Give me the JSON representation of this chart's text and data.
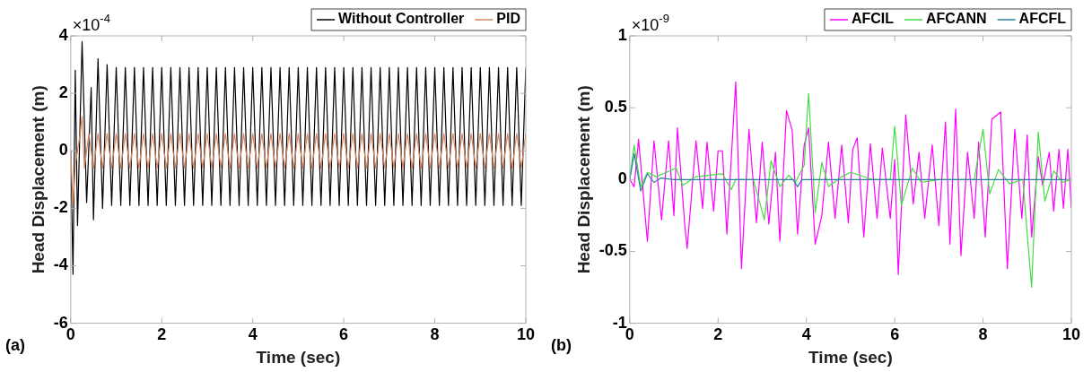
{
  "chart_data": [
    {
      "type": "line",
      "xlabel": "Time (sec)",
      "ylabel": "Head Displacement (m)",
      "annotations": [
        "×10$^{-4}$",
        "(a)"
      ],
      "xlim": [
        0,
        10
      ],
      "xticks": [
        0,
        2,
        4,
        6,
        8,
        10
      ],
      "ylim": [
        -6,
        4
      ],
      "yticks": [
        -6,
        -4,
        -2,
        0,
        2,
        4
      ],
      "grid": false,
      "legend": "top right",
      "marker": "none",
      "line_style": "solid",
      "series": [
        {
          "name": "Without Controller",
          "color": "#000000",
          "x": [
            0,
            0.05,
            0.1,
            0.15,
            0.25,
            0.35,
            0.45,
            0.5,
            0.6,
            0.7,
            0.8,
            0.9,
            1,
            1.1,
            1.2,
            1.3,
            1.4,
            1.5,
            1.6,
            1.7,
            1.8,
            1.9,
            2,
            2.1,
            2.2,
            2.3,
            2.4,
            2.5,
            2.6,
            2.7,
            2.8,
            2.9,
            3,
            3.1,
            3.2,
            3.3,
            3.4,
            3.5,
            3.6,
            3.7,
            3.8,
            3.9,
            4,
            4.1,
            4.2,
            4.3,
            4.4,
            4.5,
            4.6,
            4.7,
            4.8,
            4.9,
            5,
            5.1,
            5.2,
            5.3,
            5.4,
            5.5,
            5.6,
            5.7,
            5.8,
            5.9,
            6,
            6.1,
            6.2,
            6.3,
            6.4,
            6.5,
            6.6,
            6.7,
            6.8,
            6.9,
            7,
            7.1,
            7.2,
            7.3,
            7.4,
            7.5,
            7.6,
            7.7,
            7.8,
            7.9,
            8,
            8.1,
            8.2,
            8.3,
            8.4,
            8.5,
            8.6,
            8.7,
            8.8,
            8.9,
            9,
            9.1,
            9.2,
            9.3,
            9.4,
            9.5,
            9.6,
            9.7,
            9.8,
            9.9,
            10
          ],
          "values": [
            0,
            -4.3,
            2.8,
            -2.6,
            3.8,
            -1.8,
            2.2,
            -2.4,
            3.2,
            -2,
            3,
            -1.9,
            2.9,
            -1.9,
            2.9,
            -1.9,
            2.9,
            -1.9,
            2.9,
            -1.9,
            2.9,
            -1.9,
            2.9,
            -1.9,
            2.9,
            -1.9,
            2.9,
            -1.9,
            2.9,
            -1.9,
            2.9,
            -1.9,
            2.9,
            -1.9,
            2.9,
            -1.9,
            2.9,
            -1.9,
            2.9,
            -1.9,
            2.9,
            -1.9,
            2.9,
            -1.9,
            2.9,
            -1.9,
            2.9,
            -1.9,
            2.9,
            -1.9,
            2.9,
            -1.9,
            2.9,
            -1.9,
            2.9,
            -1.9,
            2.9,
            -1.9,
            2.9,
            -1.9,
            2.9,
            -1.9,
            2.9,
            -1.9,
            2.9,
            -1.9,
            2.9,
            -1.9,
            2.9,
            -1.9,
            2.9,
            -1.9,
            2.9,
            -1.9,
            2.9,
            -1.9,
            2.9,
            -1.9,
            2.9,
            -1.9,
            2.9,
            -1.9,
            2.9,
            -1.9,
            2.9,
            -1.9,
            2.9,
            -1.9,
            2.9,
            -1.9,
            2.9,
            -1.9,
            2.9,
            -1.9,
            2.9,
            -1.9,
            2.9,
            -1.9,
            2.9,
            -1.9,
            2.9,
            -1.9,
            2.9
          ]
        },
        {
          "name": "PID",
          "color": "#d9865e",
          "x": [
            0,
            0.05,
            0.1,
            0.2,
            0.25,
            0.3,
            0.4,
            0.5,
            0.6,
            0.7,
            0.8,
            0.9,
            1,
            1.1,
            1.2,
            1.3,
            1.4,
            1.5,
            1.6,
            1.7,
            1.8,
            1.9,
            2,
            2.1,
            2.2,
            2.3,
            2.4,
            2.5,
            2.6,
            2.7,
            2.8,
            2.9,
            3,
            3.1,
            3.2,
            3.3,
            3.4,
            3.5,
            3.6,
            3.7,
            3.8,
            3.9,
            4,
            4.1,
            4.2,
            4.3,
            4.4,
            4.5,
            4.6,
            4.7,
            4.8,
            4.9,
            5,
            5.1,
            5.2,
            5.3,
            5.4,
            5.5,
            5.6,
            5.7,
            5.8,
            5.9,
            6,
            6.1,
            6.2,
            6.3,
            6.4,
            6.5,
            6.6,
            6.7,
            6.8,
            6.9,
            7,
            7.1,
            7.2,
            7.3,
            7.4,
            7.5,
            7.6,
            7.7,
            7.8,
            7.9,
            8,
            8.1,
            8.2,
            8.3,
            8.4,
            8.5,
            8.6,
            8.7,
            8.8,
            8.9,
            9,
            9.1,
            9.2,
            9.3,
            9.4,
            9.5,
            9.6,
            9.7,
            9.8,
            9.9,
            10
          ],
          "values": [
            0,
            -1.9,
            -0.5,
            0.5,
            1.2,
            -0.6,
            0.6,
            -0.6,
            0.6,
            -0.6,
            0.6,
            -0.6,
            0.6,
            -0.6,
            0.6,
            -0.6,
            0.6,
            -0.6,
            0.6,
            -0.6,
            0.6,
            -0.6,
            0.6,
            -0.6,
            0.6,
            -0.6,
            0.6,
            -0.6,
            0.6,
            -0.6,
            0.6,
            -0.6,
            0.6,
            -0.6,
            0.6,
            -0.6,
            0.6,
            -0.6,
            0.6,
            -0.6,
            0.6,
            -0.6,
            0.6,
            -0.6,
            0.6,
            -0.6,
            0.6,
            -0.6,
            0.6,
            -0.6,
            0.6,
            -0.6,
            0.6,
            -0.6,
            0.6,
            -0.6,
            0.6,
            -0.6,
            0.6,
            -0.6,
            0.6,
            -0.6,
            0.6,
            -0.6,
            0.6,
            -0.6,
            0.6,
            -0.6,
            0.6,
            -0.6,
            0.6,
            -0.6,
            0.6,
            -0.6,
            0.6,
            -0.6,
            0.6,
            -0.6,
            0.6,
            -0.6,
            0.6,
            -0.6,
            0.6,
            -0.6,
            0.6,
            -0.6,
            0.6,
            -0.6,
            0.6,
            -0.6,
            0.6,
            -0.6,
            0.6,
            -0.6,
            0.6,
            -0.6,
            0.6,
            -0.6,
            0.6,
            -0.6,
            0.6,
            -0.6,
            0.6
          ]
        }
      ]
    },
    {
      "type": "line",
      "xlabel": "Time (sec)",
      "ylabel": "Head Displacement (m)",
      "annotations": [
        "×10$^{-9}$",
        "(b)"
      ],
      "xlim": [
        0,
        10
      ],
      "xticks": [
        0,
        2,
        4,
        6,
        8,
        10
      ],
      "ylim": [
        -1,
        1
      ],
      "yticks": [
        -1,
        -0.5,
        0,
        0.5,
        1
      ],
      "grid": false,
      "legend": "top right",
      "marker": "none",
      "line_style": "solid",
      "series": [
        {
          "name": "AFCIL",
          "color": "#ff00ff",
          "x": [
            0,
            0.1,
            0.2,
            0.4,
            0.55,
            0.72,
            0.88,
            1,
            1.08,
            1.25,
            1.3,
            1.5,
            1.65,
            1.75,
            1.9,
            2,
            2.1,
            2.2,
            2.4,
            2.53,
            2.7,
            2.87,
            3,
            3.15,
            3.3,
            3.4,
            3.55,
            3.68,
            3.8,
            3.95,
            4.05,
            4.2,
            4.35,
            4.5,
            4.65,
            4.8,
            4.95,
            5.05,
            5.15,
            5.3,
            5.45,
            5.6,
            5.72,
            5.9,
            6,
            6.08,
            6.25,
            6.42,
            6.55,
            6.68,
            6.85,
            7,
            7.15,
            7.25,
            7.38,
            7.5,
            7.65,
            7.8,
            7.9,
            8.05,
            8.2,
            8.4,
            8.55,
            8.72,
            8.88,
            9,
            9.1,
            9.25,
            9.35,
            9.5,
            9.6,
            9.72,
            9.82,
            9.92,
            10
          ],
          "values": [
            0,
            -0.05,
            0.28,
            -0.43,
            0.27,
            -0.28,
            0.27,
            -0.25,
            0.36,
            -0.33,
            -0.48,
            0.27,
            -0.2,
            0.26,
            -0.22,
            0.2,
            0.2,
            -0.38,
            0.68,
            -0.62,
            0.35,
            -0.3,
            0.26,
            -0.31,
            0.19,
            -0.43,
            0.48,
            0.34,
            -0.38,
            0.24,
            0.36,
            -0.45,
            -0.25,
            0.26,
            -0.27,
            0.24,
            -0.3,
            0.21,
            0.29,
            -0.4,
            0.25,
            -0.27,
            0.22,
            -0.27,
            0.14,
            -0.66,
            0.45,
            -0.17,
            0.19,
            -0.27,
            0.24,
            -0.32,
            0.4,
            -0.45,
            0.49,
            -0.53,
            0.19,
            -0.27,
            0.26,
            -0.4,
            0.42,
            0.47,
            -0.62,
            0.35,
            -0.27,
            0.31,
            -0.4,
            0.16,
            -0.04,
            0.19,
            -0.22,
            0.21,
            -0.2,
            0.21,
            -0.2
          ]
        },
        {
          "name": "AFCANN",
          "color": "#44dd44",
          "x": [
            0,
            0.1,
            0.25,
            0.4,
            0.6,
            1.05,
            1.2,
            1.5,
            2.1,
            2.3,
            2.4,
            2.8,
            3.05,
            3.2,
            3.4,
            3.6,
            3.75,
            3.95,
            4.05,
            4.2,
            4.35,
            4.5,
            4.8,
            5,
            5.5,
            5.9,
            6,
            6.15,
            6.4,
            6.6,
            7,
            7.8,
            8,
            8.15,
            8.35,
            8.6,
            8.9,
            9.1,
            9.25,
            9.4,
            9.6,
            9.8,
            10
          ],
          "values": [
            0,
            0.24,
            -0.05,
            0.05,
            0.02,
            0.08,
            -0.04,
            0.02,
            0.04,
            -0.07,
            0,
            0,
            -0.28,
            0.13,
            -0.05,
            0.03,
            -0.02,
            0.1,
            0.6,
            -0.23,
            0.12,
            -0.05,
            0.02,
            0.05,
            0,
            0,
            0.37,
            -0.18,
            0.08,
            -0.02,
            0,
            0,
            0.35,
            -0.1,
            0.07,
            -0.03,
            0,
            -0.75,
            0.33,
            -0.15,
            0.06,
            -0.02,
            0
          ]
        },
        {
          "name": "AFCFL",
          "color": "#2a7fa0",
          "x": [
            0,
            0.1,
            0.25,
            0.4,
            0.55,
            0.7,
            1,
            3.7,
            3.8,
            3.9,
            10
          ],
          "values": [
            0,
            0.18,
            -0.08,
            0.04,
            -0.02,
            0.01,
            0,
            0,
            -0.05,
            0,
            0
          ]
        }
      ]
    }
  ]
}
